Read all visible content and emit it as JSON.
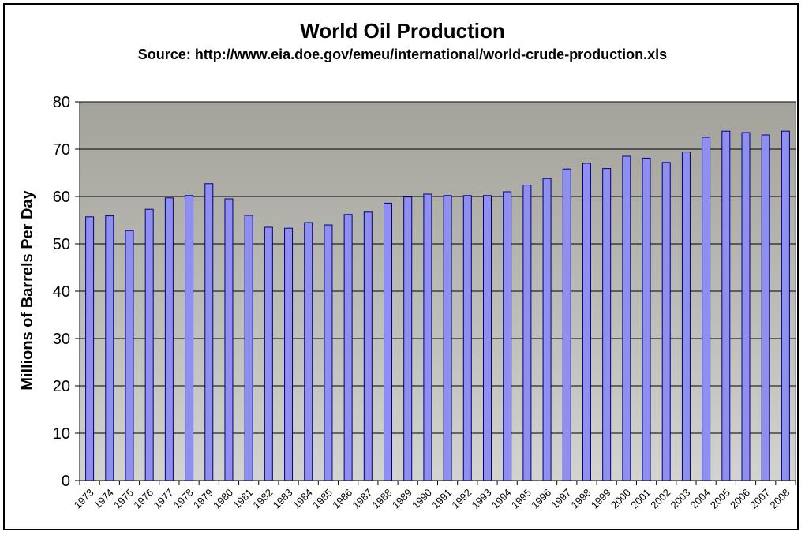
{
  "chart_data": {
    "type": "bar",
    "title": "World Oil Production",
    "subtitle": "Source: http://www.eia.doe.gov/emeu/international/world-crude-production.xls",
    "ylabel": "Millions of Barrels Per Day",
    "xlabel": "",
    "ylim": [
      0,
      80
    ],
    "yticks": [
      "0",
      "10",
      "20",
      "30",
      "40",
      "50",
      "60",
      "70",
      "80"
    ],
    "categories": [
      "1973",
      "1974",
      "1975",
      "1976",
      "1977",
      "1978",
      "1979",
      "1980",
      "1981",
      "1982",
      "1983",
      "1984",
      "1985",
      "1986",
      "1987",
      "1988",
      "1989",
      "1990",
      "1991",
      "1992",
      "1993",
      "1994",
      "1995",
      "1996",
      "1997",
      "1998",
      "1999",
      "2000",
      "2001",
      "2002",
      "2003",
      "2004",
      "2005",
      "2006",
      "2007",
      "2008"
    ],
    "values": [
      55.7,
      55.9,
      52.8,
      57.3,
      59.7,
      60.2,
      62.7,
      59.5,
      56.0,
      53.5,
      53.3,
      54.5,
      54.0,
      56.2,
      56.7,
      58.6,
      59.9,
      60.5,
      60.2,
      60.2,
      60.2,
      61.0,
      62.4,
      63.8,
      65.8,
      67.0,
      65.9,
      68.5,
      68.1,
      67.2,
      69.4,
      72.5,
      73.8,
      73.5,
      73.0,
      73.8
    ],
    "grid": true,
    "legend": "none",
    "colors": {
      "bar_fill": "#8f8fef",
      "bar_stroke": "#000080",
      "plot_bg_top": "#a3a39b",
      "plot_bg_bottom": "#d3d3cf",
      "grid": "#000000"
    }
  }
}
